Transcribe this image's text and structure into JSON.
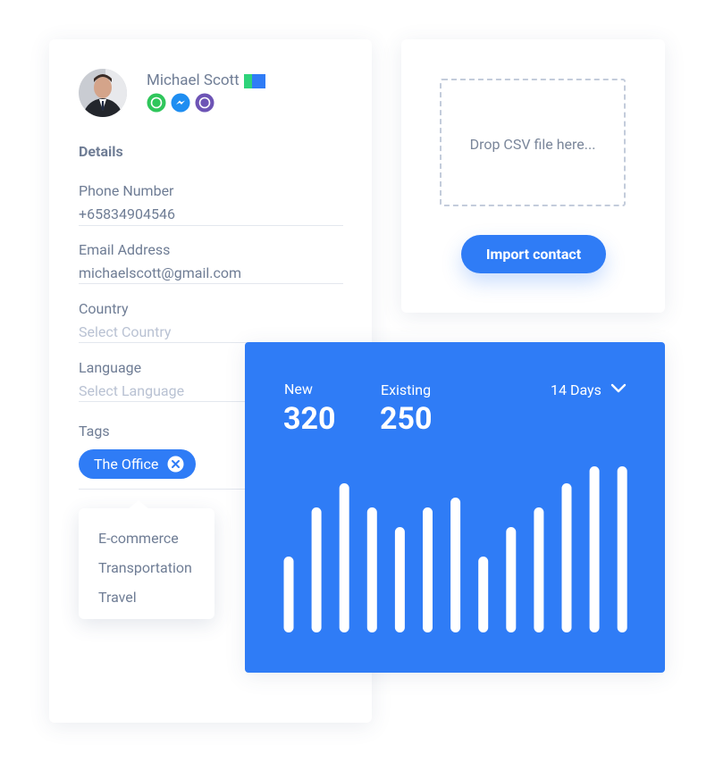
{
  "profile": {
    "name": "Michael Scott",
    "section": "Details",
    "fields": [
      {
        "label": "Phone Number",
        "value": "+65834904546"
      },
      {
        "label": "Email Address",
        "value": "michaelscott@gmail.com"
      },
      {
        "label": "Country",
        "placeholder": "Select Country"
      },
      {
        "label": "Language",
        "placeholder": "Select Language"
      }
    ],
    "tags_label": "Tags",
    "tag": "The Office",
    "tag_options": [
      "E-commerce",
      "Transportation",
      "Travel"
    ]
  },
  "import": {
    "dropzone": "Drop CSV file here...",
    "button": "Import contact"
  },
  "stats": {
    "metrics": [
      {
        "label": "New",
        "value": 320
      },
      {
        "label": "Existing",
        "value": 250
      }
    ],
    "period": "14 Days",
    "bars": [
      85,
      140,
      167,
      140,
      118,
      140,
      151,
      85,
      118,
      140,
      167,
      186,
      186
    ]
  }
}
